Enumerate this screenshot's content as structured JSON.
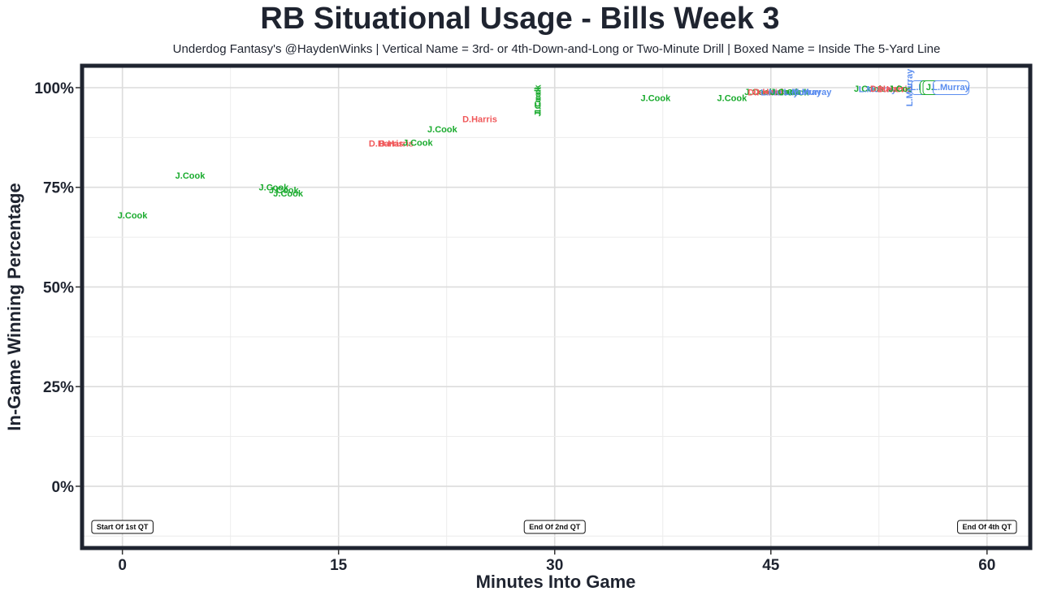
{
  "chart_data": {
    "type": "scatter",
    "title": "RB Situational Usage - Bills Week 3",
    "subtitle": "Underdog Fantasy's @HaydenWinks | Vertical Name = 3rd- or 4th-Down-and-Long or Two-Minute Drill | Boxed Name = Inside The 5-Yard Line",
    "xlabel": "Minutes Into Game",
    "ylabel": "In-Game Winning Percentage",
    "xlim": [
      -2.8,
      63
    ],
    "ylim": [
      -15.5,
      105.5
    ],
    "xticks": [
      0,
      15,
      30,
      45,
      60
    ],
    "xtick_labels": [
      "0",
      "15",
      "30",
      "45",
      "60"
    ],
    "yticks": [
      0,
      25,
      50,
      75,
      100
    ],
    "ytick_labels": [
      "0%",
      "25%",
      "50%",
      "75%",
      "100%"
    ],
    "grid": true,
    "player_colors": {
      "J.Cook": "#1aab2e",
      "D.Harris": "#f0585a",
      "L.Murray": "#5b8def"
    },
    "points": [
      {
        "x": 0.7,
        "y": 68,
        "name": "J.Cook",
        "vertical": false,
        "boxed": false
      },
      {
        "x": 4.7,
        "y": 78,
        "name": "J.Cook",
        "vertical": false,
        "boxed": false
      },
      {
        "x": 10.5,
        "y": 75,
        "name": "J.Cook",
        "vertical": false,
        "boxed": false
      },
      {
        "x": 11.2,
        "y": 74.3,
        "name": "J.Cook",
        "vertical": false,
        "boxed": false
      },
      {
        "x": 11.5,
        "y": 73.5,
        "name": "J.Cook",
        "vertical": false,
        "boxed": false
      },
      {
        "x": 18.3,
        "y": 86,
        "name": "D.Harris",
        "vertical": false,
        "boxed": false
      },
      {
        "x": 19.0,
        "y": 86,
        "name": "D.Harris",
        "vertical": false,
        "boxed": false
      },
      {
        "x": 20.5,
        "y": 86.2,
        "name": "J.Cook",
        "vertical": false,
        "boxed": false
      },
      {
        "x": 22.2,
        "y": 89.6,
        "name": "J.Cook",
        "vertical": false,
        "boxed": false
      },
      {
        "x": 24.8,
        "y": 92.2,
        "name": "D.Harris",
        "vertical": false,
        "boxed": false
      },
      {
        "x": 28.8,
        "y": 97,
        "name": "J.Cook",
        "vertical": true,
        "boxed": false
      },
      {
        "x": 28.8,
        "y": 96.5,
        "name": "J.Cook",
        "vertical": true,
        "boxed": false
      },
      {
        "x": 37.0,
        "y": 97.5,
        "name": "J.Cook",
        "vertical": false,
        "boxed": false
      },
      {
        "x": 42.3,
        "y": 97.5,
        "name": "J.Cook",
        "vertical": false,
        "boxed": false
      },
      {
        "x": 44.2,
        "y": 99,
        "name": "J.Cook",
        "vertical": false,
        "boxed": false
      },
      {
        "x": 44.6,
        "y": 98.9,
        "name": "D.Harris",
        "vertical": false,
        "boxed": false
      },
      {
        "x": 45.0,
        "y": 99,
        "name": "D.Harris",
        "vertical": false,
        "boxed": false
      },
      {
        "x": 45.6,
        "y": 98.9,
        "name": "L.Murray",
        "vertical": false,
        "boxed": false
      },
      {
        "x": 46.0,
        "y": 99,
        "name": "J.Cook",
        "vertical": false,
        "boxed": false
      },
      {
        "x": 46.6,
        "y": 98.9,
        "name": "J.Cook",
        "vertical": false,
        "boxed": false
      },
      {
        "x": 47.2,
        "y": 99,
        "name": "L.Murray",
        "vertical": false,
        "boxed": false
      },
      {
        "x": 47.9,
        "y": 99,
        "name": "L.Murray",
        "vertical": false,
        "boxed": false
      },
      {
        "x": 51.8,
        "y": 99.8,
        "name": "J.Cook",
        "vertical": false,
        "boxed": false
      },
      {
        "x": 52.4,
        "y": 99.7,
        "name": "L.Murray",
        "vertical": false,
        "boxed": false
      },
      {
        "x": 53.1,
        "y": 99.8,
        "name": "D.Harris",
        "vertical": false,
        "boxed": false
      },
      {
        "x": 53.6,
        "y": 99.7,
        "name": "D.Harris",
        "vertical": false,
        "boxed": false
      },
      {
        "x": 54.2,
        "y": 99.8,
        "name": "J.Cook",
        "vertical": false,
        "boxed": false
      },
      {
        "x": 54.6,
        "y": 100,
        "name": "L.Murray",
        "vertical": true,
        "boxed": false
      },
      {
        "x": 56.0,
        "y": 100,
        "name": "L.Murray",
        "vertical": false,
        "boxed": true
      },
      {
        "x": 56.6,
        "y": 100,
        "name": "J.Cook",
        "vertical": false,
        "boxed": true
      },
      {
        "x": 56.8,
        "y": 100,
        "name": "J.Cook",
        "vertical": false,
        "boxed": true
      },
      {
        "x": 57.5,
        "y": 100,
        "name": "L.Murray",
        "vertical": false,
        "boxed": true
      }
    ],
    "quarter_markers": [
      {
        "x": 0,
        "label": "Start Of 1st QT"
      },
      {
        "x": 30,
        "label": "End Of 2nd QT"
      },
      {
        "x": 60,
        "label": "End Of 4th QT"
      }
    ]
  }
}
